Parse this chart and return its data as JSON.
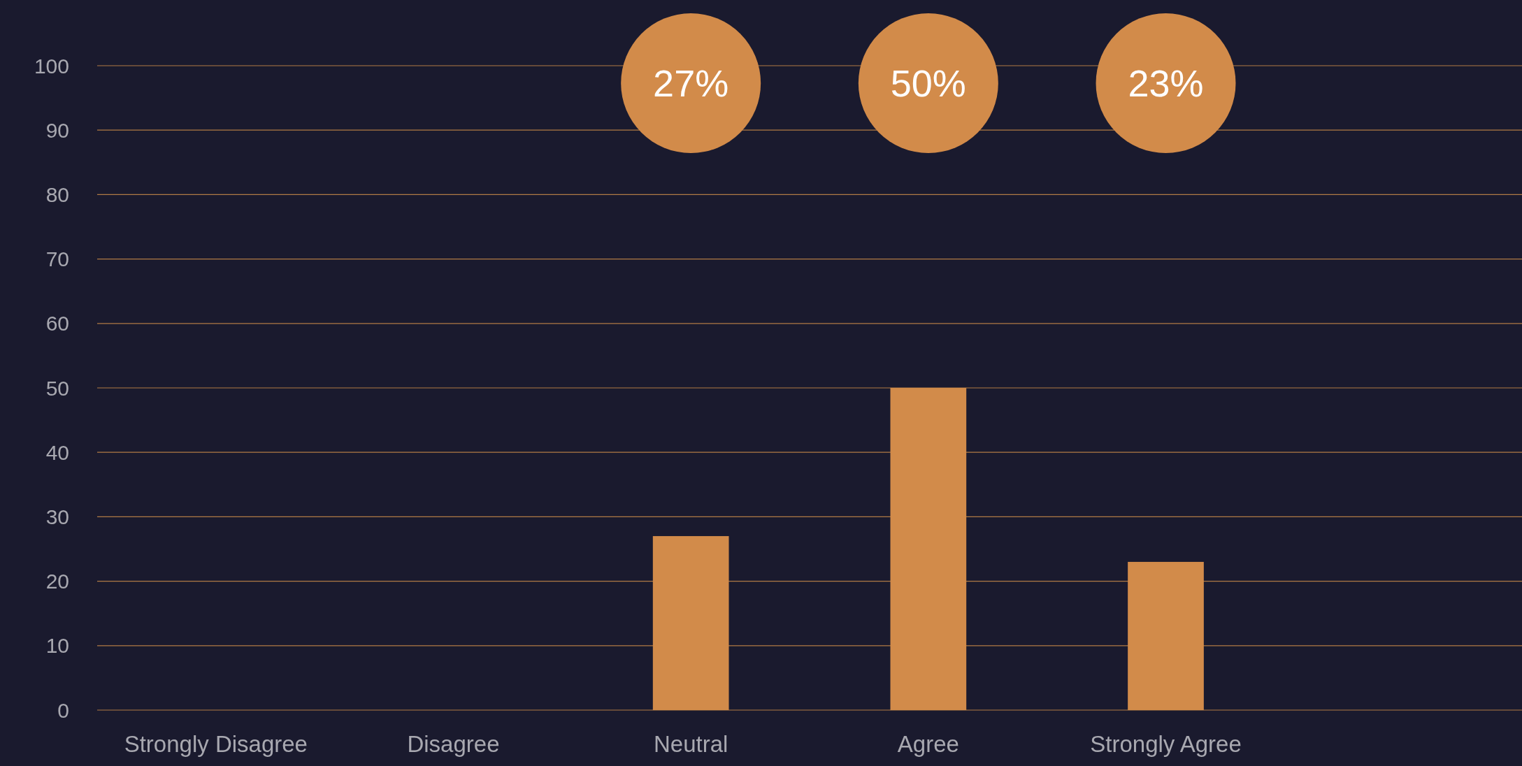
{
  "chart_data": {
    "type": "bar",
    "categories": [
      "Strongly Disagree",
      "Disagree",
      "Neutral",
      "Agree",
      "Strongly Agree",
      null
    ],
    "values": [
      0,
      0,
      27,
      50,
      23,
      null
    ],
    "color": "#d28b4a",
    "annotations": [
      "27%",
      "50%",
      "23%"
    ],
    "ylim": [
      0,
      100
    ],
    "yticks": [
      0,
      10,
      20,
      30,
      40,
      50,
      60,
      70,
      80,
      90,
      100
    ],
    "grid": "y"
  }
}
